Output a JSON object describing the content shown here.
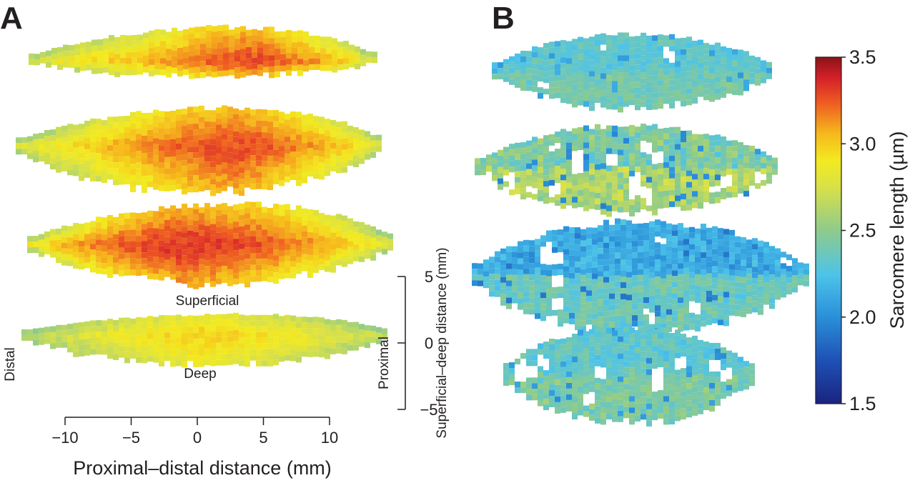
{
  "panels": {
    "a": "A",
    "b": "B"
  },
  "colors": {
    "colormap": "jet",
    "text": "#231f20"
  },
  "annotations": {
    "superficial": "Superficial",
    "deep": "Deep",
    "distal": "Distal",
    "proximal": "Proximal"
  },
  "chart_data": [
    {
      "panel": "A",
      "type": "heatmap",
      "description_of_marks": "four stacked muscle slices coloured by sarcomere length",
      "xlabel": "Proximal–distal distance (mm)",
      "x_ticks": [
        "−10",
        "−5",
        "0",
        "5",
        "10"
      ],
      "x_tick_values": [
        -10,
        -5,
        0,
        5,
        10
      ],
      "xlim": [
        -10,
        10
      ],
      "ylabel": "Superficial–deep distance (mm)",
      "y_ticks": [
        "5",
        "0",
        "−5"
      ],
      "y_tick_values": [
        5,
        0,
        -5
      ],
      "ylim": [
        -5,
        5
      ],
      "slices": [
        {
          "index": 1,
          "typical_value": 3.05,
          "max_value": 3.25,
          "min_value": 2.6
        },
        {
          "index": 2,
          "typical_value": 2.95,
          "max_value": 3.25,
          "min_value": 2.6
        },
        {
          "index": 3,
          "typical_value": 2.95,
          "max_value": 3.3,
          "min_value": 2.55
        },
        {
          "index": 4,
          "typical_value": 2.85,
          "max_value": 2.95,
          "min_value": 2.55
        }
      ]
    },
    {
      "panel": "B",
      "type": "heatmap",
      "description_of_marks": "four stacked muscle slices coloured by sarcomere length",
      "slices": [
        {
          "index": 1,
          "typical_value": 2.25,
          "max_value": 2.65,
          "min_value": 2.1
        },
        {
          "index": 2,
          "typical_value": 2.25,
          "max_value": 3.1,
          "min_value": 2.0
        },
        {
          "index": 3,
          "typical_value": 2.25,
          "max_value": 2.7,
          "min_value": 1.95
        },
        {
          "index": 4,
          "typical_value": 2.35,
          "max_value": 2.75,
          "min_value": 2.05
        }
      ]
    }
  ],
  "colorbar": {
    "label": "Sarcomere length (µm)",
    "ticks": [
      "3.5",
      "3.0",
      "2.5",
      "2.0",
      "1.5"
    ],
    "tick_values": [
      3.5,
      3.0,
      2.5,
      2.0,
      1.5
    ],
    "range": [
      1.5,
      3.5
    ]
  }
}
